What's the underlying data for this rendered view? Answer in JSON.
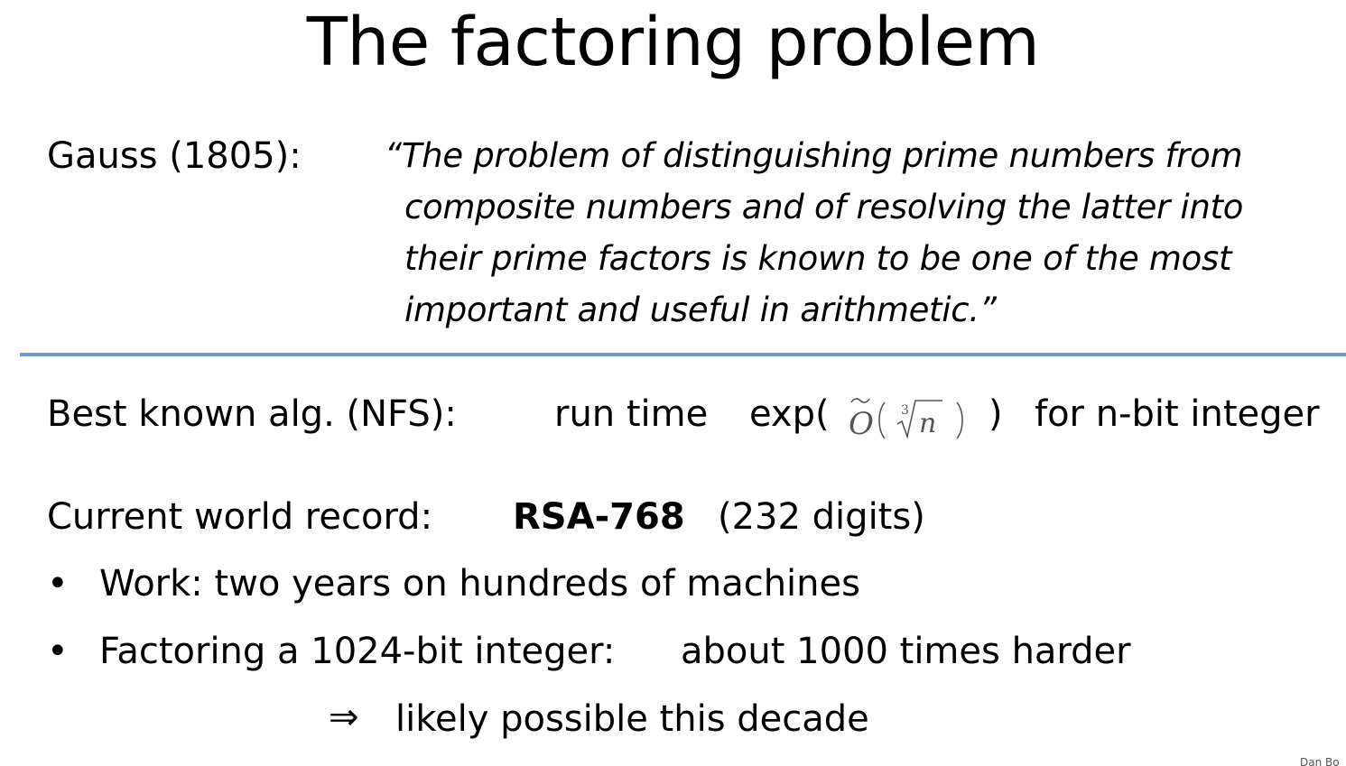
{
  "title": "The factoring problem",
  "gauss": {
    "label": "Gauss (1805):",
    "quote_lines": [
      "“The problem of distinguishing prime numbers from",
      "composite numbers and of resolving the latter into",
      "their prime factors is known to be one of the most",
      "important and useful in arithmetic.”"
    ]
  },
  "algorithm": {
    "label": "Best known alg.   (NFS):",
    "runtime_label": "run time",
    "exp_open": "exp(",
    "formula": "Õ(∛n)",
    "formula_parts": {
      "big_o": "O",
      "root_index": "3",
      "radicand": "n"
    },
    "exp_close": ")",
    "suffix": "for n-bit integer"
  },
  "record": {
    "label": "Current world record:",
    "name": "RSA-768",
    "digits": "(232 digits)"
  },
  "bullets": {
    "marker": "•",
    "work": "Work:  two years on hundreds of machines",
    "factoring_label": "Factoring a 1024-bit integer:",
    "factoring_value": "about 1000 times harder"
  },
  "implication": {
    "arrow": "⇒",
    "text": "likely possible this decade"
  },
  "footer": {
    "author": "Dan Bo"
  },
  "colors": {
    "divider": "#6f9bd1",
    "text": "#000000",
    "math": "#555555"
  }
}
